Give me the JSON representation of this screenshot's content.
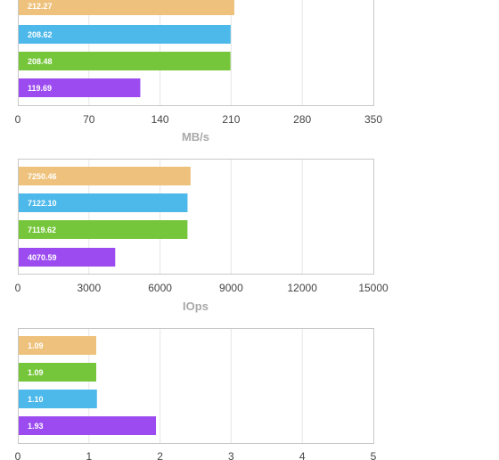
{
  "colors": {
    "orange": "#EEC27C",
    "blue": "#4DB8EA",
    "green": "#76C63B",
    "purple": "#9B4BEF"
  },
  "chart_data": [
    {
      "type": "bar",
      "orientation": "horizontal",
      "xlabel": "MB/s",
      "xlim": [
        0,
        350
      ],
      "ticks": [
        "0",
        "70",
        "140",
        "210",
        "280",
        "350"
      ],
      "grid": true,
      "bars": [
        {
          "value": 212.27,
          "label": "212.27",
          "color": "orange"
        },
        {
          "value": 208.62,
          "label": "208.62",
          "color": "blue"
        },
        {
          "value": 208.48,
          "label": "208.48",
          "color": "green"
        },
        {
          "value": 119.69,
          "label": "119.69",
          "color": "purple"
        }
      ]
    },
    {
      "type": "bar",
      "orientation": "horizontal",
      "xlabel": "IOps",
      "xlim": [
        0,
        15000
      ],
      "ticks": [
        "0",
        "3000",
        "6000",
        "9000",
        "12000",
        "15000"
      ],
      "grid": true,
      "bars": [
        {
          "value": 7250.46,
          "label": "7250.46",
          "color": "orange"
        },
        {
          "value": 7122.1,
          "label": "7122.10",
          "color": "blue"
        },
        {
          "value": 7119.62,
          "label": "7119.62",
          "color": "green"
        },
        {
          "value": 4070.59,
          "label": "4070.59",
          "color": "purple"
        }
      ]
    },
    {
      "type": "bar",
      "orientation": "horizontal",
      "xlabel": "",
      "xlim": [
        0,
        5
      ],
      "ticks": [
        "0",
        "1",
        "2",
        "3",
        "4",
        "5"
      ],
      "grid": true,
      "bars": [
        {
          "value": 1.09,
          "label": "1.09",
          "color": "orange"
        },
        {
          "value": 1.09,
          "label": "1.09",
          "color": "green"
        },
        {
          "value": 1.1,
          "label": "1.10",
          "color": "blue"
        },
        {
          "value": 1.93,
          "label": "1.93",
          "color": "purple"
        }
      ]
    }
  ]
}
